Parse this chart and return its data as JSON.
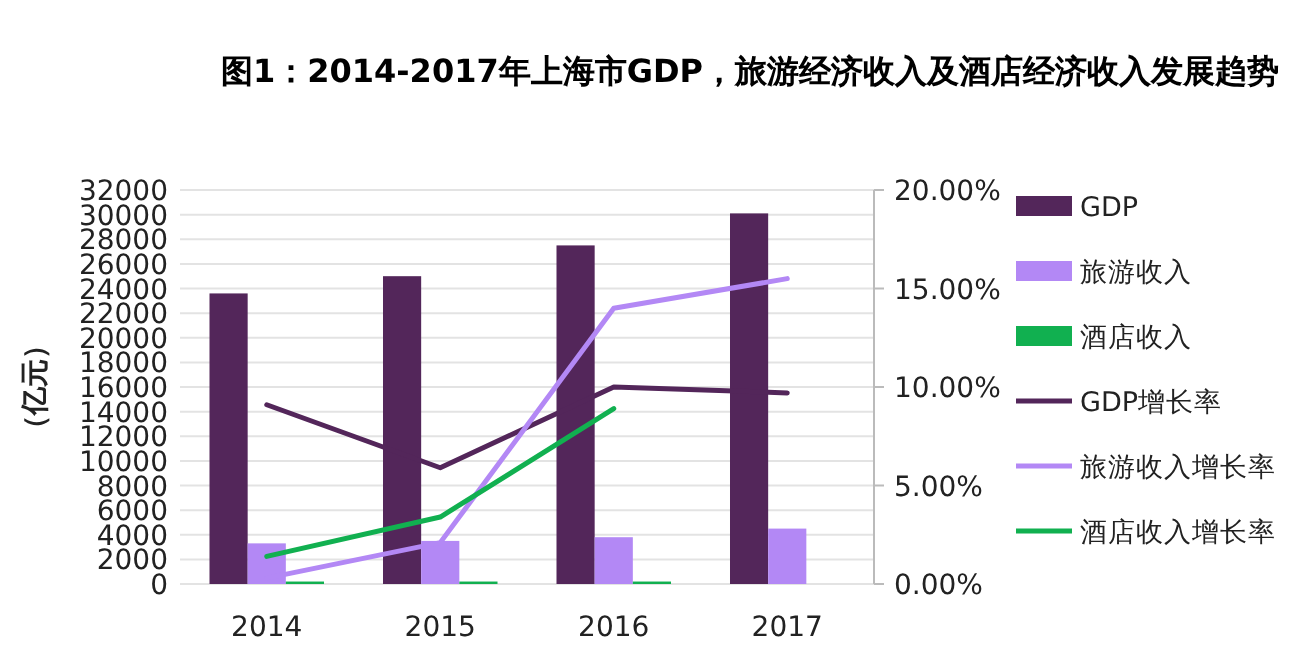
{
  "chart_data": {
    "type": "bar",
    "title": "图1：2014-2017年上海市GDP，旅游经济收入及酒店经济收入发展趋势",
    "ylabel": "（亿元）",
    "categories": [
      "2014",
      "2015",
      "2016",
      "2017"
    ],
    "series": [
      {
        "name": "GDP",
        "color": "#53265a",
        "values": [
          23600,
          25000,
          27500,
          30100
        ]
      },
      {
        "name": "旅游收入",
        "color": "#b388f5",
        "values": [
          3300,
          3500,
          3800,
          4500
        ]
      },
      {
        "name": "酒店收入",
        "color": "#11b050",
        "values": [
          200,
          200,
          200,
          null
        ]
      },
      {
        "name": "GDP增长率",
        "type": "line",
        "axis": "y2",
        "color": "#53265a",
        "values": [
          9.1,
          5.9,
          10.0,
          9.7
        ]
      },
      {
        "name": "旅游收入增长率",
        "type": "line",
        "axis": "y2",
        "color": "#b388f5",
        "values": [
          0.3,
          2.1,
          14.0,
          15.5
        ]
      },
      {
        "name": "酒店收入增长率",
        "type": "line",
        "axis": "y2",
        "color": "#11b050",
        "values": [
          1.4,
          3.4,
          8.9,
          null
        ]
      }
    ],
    "ylim": [
      0,
      32000
    ],
    "yticks": [
      0,
      2000,
      4000,
      6000,
      8000,
      10000,
      12000,
      14000,
      16000,
      18000,
      20000,
      22000,
      24000,
      26000,
      28000,
      30000,
      32000
    ],
    "y2lim": [
      0,
      20
    ],
    "y2ticks": [
      {
        "value": 0,
        "label": "0.00%"
      },
      {
        "value": 5,
        "label": "5.00%"
      },
      {
        "value": 10,
        "label": "10.00%"
      },
      {
        "value": 15,
        "label": "15.00%"
      },
      {
        "value": 20,
        "label": "20.00%"
      }
    ],
    "grid": "y",
    "legend": "right",
    "line_style": "solid"
  }
}
